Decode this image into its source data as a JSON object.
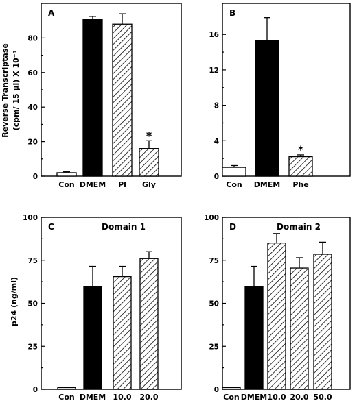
{
  "colors": {
    "solid": "#000000",
    "open": "#ffffff",
    "hatch": "#000000"
  },
  "ylabel_top": "Reverse Transcriptase",
  "ylabel_top_units": "(cpm/ 15 µl) X 10⁻³",
  "ylabel_bottom": "p24  (ng/ml)",
  "chart_data": [
    {
      "panel": "A",
      "type": "bar",
      "categories": [
        "Con",
        "DMEM",
        "Pl",
        "Gly"
      ],
      "values": [
        2,
        91,
        88,
        16
      ],
      "errors": [
        0.5,
        1.5,
        6,
        4.5
      ],
      "fills": [
        "open",
        "solid",
        "hatch",
        "hatch"
      ],
      "significant": [
        false,
        false,
        false,
        true
      ],
      "ylim": [
        0,
        100
      ],
      "yticks": [
        0,
        20,
        40,
        60,
        80
      ],
      "title": "",
      "ylabel": "Reverse Transcriptase (cpm/ 15 µl) X 10⁻³"
    },
    {
      "panel": "B",
      "type": "bar",
      "categories": [
        "Con",
        "DMEM",
        "Phe"
      ],
      "values": [
        1.0,
        15.3,
        2.2
      ],
      "errors": [
        0.2,
        2.6,
        0.2
      ],
      "fills": [
        "open",
        "solid",
        "hatch"
      ],
      "significant": [
        false,
        false,
        true
      ],
      "ylim": [
        0,
        19.5
      ],
      "yticks": [
        0,
        4,
        8,
        12,
        16
      ],
      "title": ""
    },
    {
      "panel": "C",
      "type": "bar",
      "categories": [
        "Con",
        "DMEM",
        "10.0",
        "20.0"
      ],
      "values": [
        1,
        59.5,
        65.5,
        76
      ],
      "errors": [
        0.3,
        12,
        6,
        4
      ],
      "fills": [
        "open",
        "solid",
        "hatch",
        "hatch"
      ],
      "significant": [
        false,
        false,
        false,
        false
      ],
      "ylim": [
        0,
        100
      ],
      "yticks": [
        0,
        25,
        50,
        75,
        100
      ],
      "title": "Domain 1",
      "ylabel": "p24  (ng/ml)"
    },
    {
      "panel": "D",
      "type": "bar",
      "categories": [
        "Con",
        "DMEM",
        "10.0",
        "20.0",
        "50.0"
      ],
      "values": [
        1,
        59.5,
        85,
        70.5,
        78.5
      ],
      "errors": [
        0.3,
        12,
        5.5,
        6,
        7
      ],
      "fills": [
        "open",
        "solid",
        "hatch",
        "hatch",
        "hatch"
      ],
      "significant": [
        false,
        false,
        false,
        false,
        false
      ],
      "ylim": [
        0,
        100
      ],
      "yticks": [
        0,
        25,
        50,
        75,
        100
      ],
      "title": "Domain 2"
    }
  ]
}
